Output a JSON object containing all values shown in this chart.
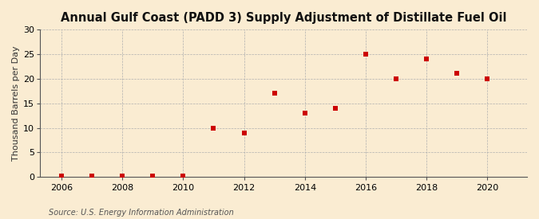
{
  "title": "Annual Gulf Coast (PADD 3) Supply Adjustment of Distillate Fuel Oil",
  "ylabel": "Thousand Barrels per Day",
  "source": "Source: U.S. Energy Information Administration",
  "background_color": "#faecd2",
  "marker_color": "#cc0000",
  "years": [
    2006,
    2007,
    2008,
    2009,
    2010,
    2011,
    2012,
    2013,
    2014,
    2015,
    2016,
    2017,
    2018,
    2019,
    2020
  ],
  "values": [
    0.2,
    0.3,
    0.3,
    0.3,
    0.3,
    10.0,
    9.0,
    17.0,
    13.0,
    14.0,
    25.0,
    20.0,
    24.0,
    21.0,
    20.0
  ],
  "xlim": [
    2005.3,
    2021.3
  ],
  "ylim": [
    0,
    30
  ],
  "yticks": [
    0,
    5,
    10,
    15,
    20,
    25,
    30
  ],
  "xticks": [
    2006,
    2008,
    2010,
    2012,
    2014,
    2016,
    2018,
    2020
  ],
  "title_fontsize": 10.5,
  "label_fontsize": 8,
  "tick_fontsize": 8,
  "source_fontsize": 7
}
